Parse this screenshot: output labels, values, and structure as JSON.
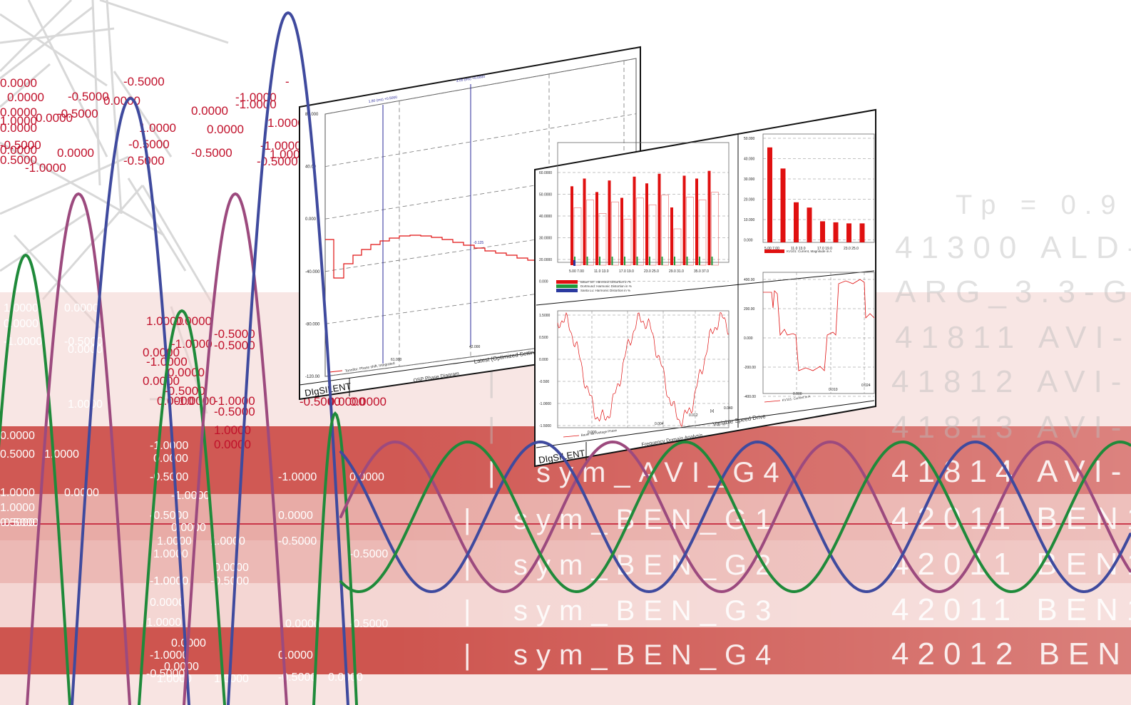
{
  "colors": {
    "red_band": "#c9423c",
    "pink_band": "#e6a29c",
    "light_band": "#f3d2ce",
    "wave_blue": "#3f4a9e",
    "wave_purple": "#9c4a7e",
    "wave_green": "#1f8a3a",
    "number_red": "#c0102a",
    "tower_gray": "#cfcfcf"
  },
  "background_rows": [
    {
      "pipe": "",
      "name": "",
      "code": "Tp =    0.9"
    },
    {
      "pipe": "",
      "name": "",
      "code": "41300 ALD-----"
    },
    {
      "pipe": "",
      "name": "",
      "code": "ARG_3.3-G"
    },
    {
      "pipe": "",
      "name": "",
      "code": "41811 AVI---G"
    },
    {
      "pipe": "|",
      "name": "",
      "code": "41812 AVI---G"
    },
    {
      "pipe": "|",
      "name": "",
      "code": "41813 AVI---G"
    },
    {
      "pipe": "|",
      "name": "sym_AVI_G4",
      "code": "41814 AVI---G"
    },
    {
      "pipe": "|",
      "name": "sym_BEN_G1",
      "code": "42011 BEN16-"
    },
    {
      "pipe": "|",
      "name": "sym_BEN_G2",
      "code": "42011 BEN16--"
    },
    {
      "pipe": "|",
      "name": "sym_BEN_G3",
      "code": "42011 BEN16--"
    },
    {
      "pipe": "|",
      "name": "sym_BEN_G4",
      "code": "42012 BEN16--"
    }
  ],
  "red_numbers": [
    "0.0000",
    "-0.5000",
    "-0.5000",
    "-1.0000",
    "-",
    "0.0000",
    "0.0000",
    "0.0000",
    "1.0000",
    "0.0000",
    "-0.5000",
    "0.0000",
    "-0.5000",
    "1.0000",
    "0.0000",
    "0.0000",
    "1.0000",
    "-1.0000",
    "-0.5000",
    "0.5000",
    "-1.0000",
    "-0.5000",
    "-0.5000",
    "1.0000",
    "-0.5000",
    "0.0000",
    "0.0000",
    "-1.0000",
    "0.0000",
    "0.0000",
    "-0.5000",
    "-0.5000",
    "1.0000",
    "0.0000",
    "-1.0000",
    "0.0000",
    "0.5000",
    "1.0000",
    "-1.0000",
    "0.0000",
    "0.0000",
    "-0.5000",
    "0.0000",
    "-1.0000",
    "-0.5000",
    "-0.5000",
    "1.0000",
    "0.0000",
    "-1.0000",
    "0.0000",
    "0.0000",
    "1.0000",
    "-0.5000",
    "-0.5000",
    "1.0000"
  ],
  "white_numbers": [
    "1.0000",
    "0.0000",
    "0.0000",
    "-0.5000",
    "-1.0000",
    "0.0000",
    "1.0000",
    "-1.0000",
    "0.0000",
    "0.5000",
    "1.0000",
    "-1.0000",
    "0.0000",
    "-0.5000",
    "1.0000",
    "-1.0000",
    "0.0000",
    "-1.0000",
    "0.0000",
    "1.0000",
    "0.0000",
    "-0.5000",
    "-0.5000",
    "0.5000",
    "0.0000",
    "-0.5000",
    "1.0000",
    "1.0000",
    "0.0000",
    "-0.5000",
    "-1.0000",
    "-0.5000",
    "1.0000",
    "0.0000",
    "0.0000",
    "-0.5000",
    "-1.0000",
    "0.0000",
    "-1.0000",
    "0.0000",
    "-0.5000",
    "0.0000",
    "-0.5000",
    "0.0000",
    "1.0000",
    "1.0000",
    "-0.5000",
    "1.0000"
  ],
  "left_panel": {
    "brand": "DIgSILENT",
    "footer_left": "OSP Phase Diagram",
    "footer_right": "Latest (Optimized Settings)",
    "y_ticks": [
      "80.000",
      "40.00",
      "0.000",
      "-40.000",
      "-80.000",
      "-120.00"
    ],
    "x_ticks": [
      "61.000",
      "42.000"
    ],
    "legend": "Tonnifor: Phase shift, Integrated",
    "marker_label": "-0.125",
    "cursor_labels": [
      "1.80 (ms) +0.5000",
      "3.05 (ms) +0.0000"
    ]
  },
  "right_panel": {
    "brand": "DIgSILENT",
    "footer_center": "Frequency Domain Analysis",
    "footer_right": "Variable Speed Drive",
    "harmonic_chart": {
      "y_ticks": [
        "60.0000",
        "50.0000",
        "40.0000",
        "30.0000",
        "20.0000",
        "0.000"
      ],
      "x_ticks": [
        "5.00",
        "7.00",
        "11.0",
        "13.0",
        "17.0",
        "19.0",
        "23.0",
        "25.0",
        "29.0",
        "31.0",
        "35.0",
        "37.0"
      ],
      "legend": [
        "Bauer Str: Harmonic Distortion in %",
        "Dortmund: Harmonic Distortion in %",
        "Santa Lu: Harmonic Distortion in %"
      ],
      "bar_heights": [
        0.82,
        0.9,
        0.76,
        0.88,
        0.7,
        0.92,
        0.85,
        0.95,
        0.6,
        0.93,
        0.9,
        0.98
      ],
      "legend_colors": [
        "#e01010",
        "#1f9a3a",
        "#2b3aa0"
      ]
    },
    "current_chart": {
      "y_ticks": [
        "50.000",
        "40.000",
        "30.000",
        "20.000",
        "10.000",
        "0.000"
      ],
      "x_ticks": [
        "5.00",
        "7.00",
        "11.0",
        "13.0",
        "17.0",
        "19.0",
        "23.0",
        "25.0"
      ],
      "legend": "KV101: Current, Magnitude in A",
      "values": [
        0.9,
        0.7,
        0.38,
        0.33,
        0.2,
        0.19,
        0.18,
        0.18
      ]
    },
    "voltage_chart": {
      "y_ticks": [
        "1.5000",
        "0.500",
        "0.000",
        "-0.500",
        "-1.0000",
        "-1.5000"
      ],
      "x_ticks": [
        "0.000",
        "0.004",
        "0.012",
        "0.040"
      ],
      "x_unit": "[s]",
      "legend": "Bauer Str: Voltage Phase"
    },
    "current_time_chart": {
      "y_ticks": [
        "400.00",
        "200.00",
        "0.000",
        "-200.00",
        "-400.00"
      ],
      "x_ticks": [
        "0.000",
        "0.010",
        "0.024"
      ],
      "legend": "KV101: Current in A"
    }
  }
}
